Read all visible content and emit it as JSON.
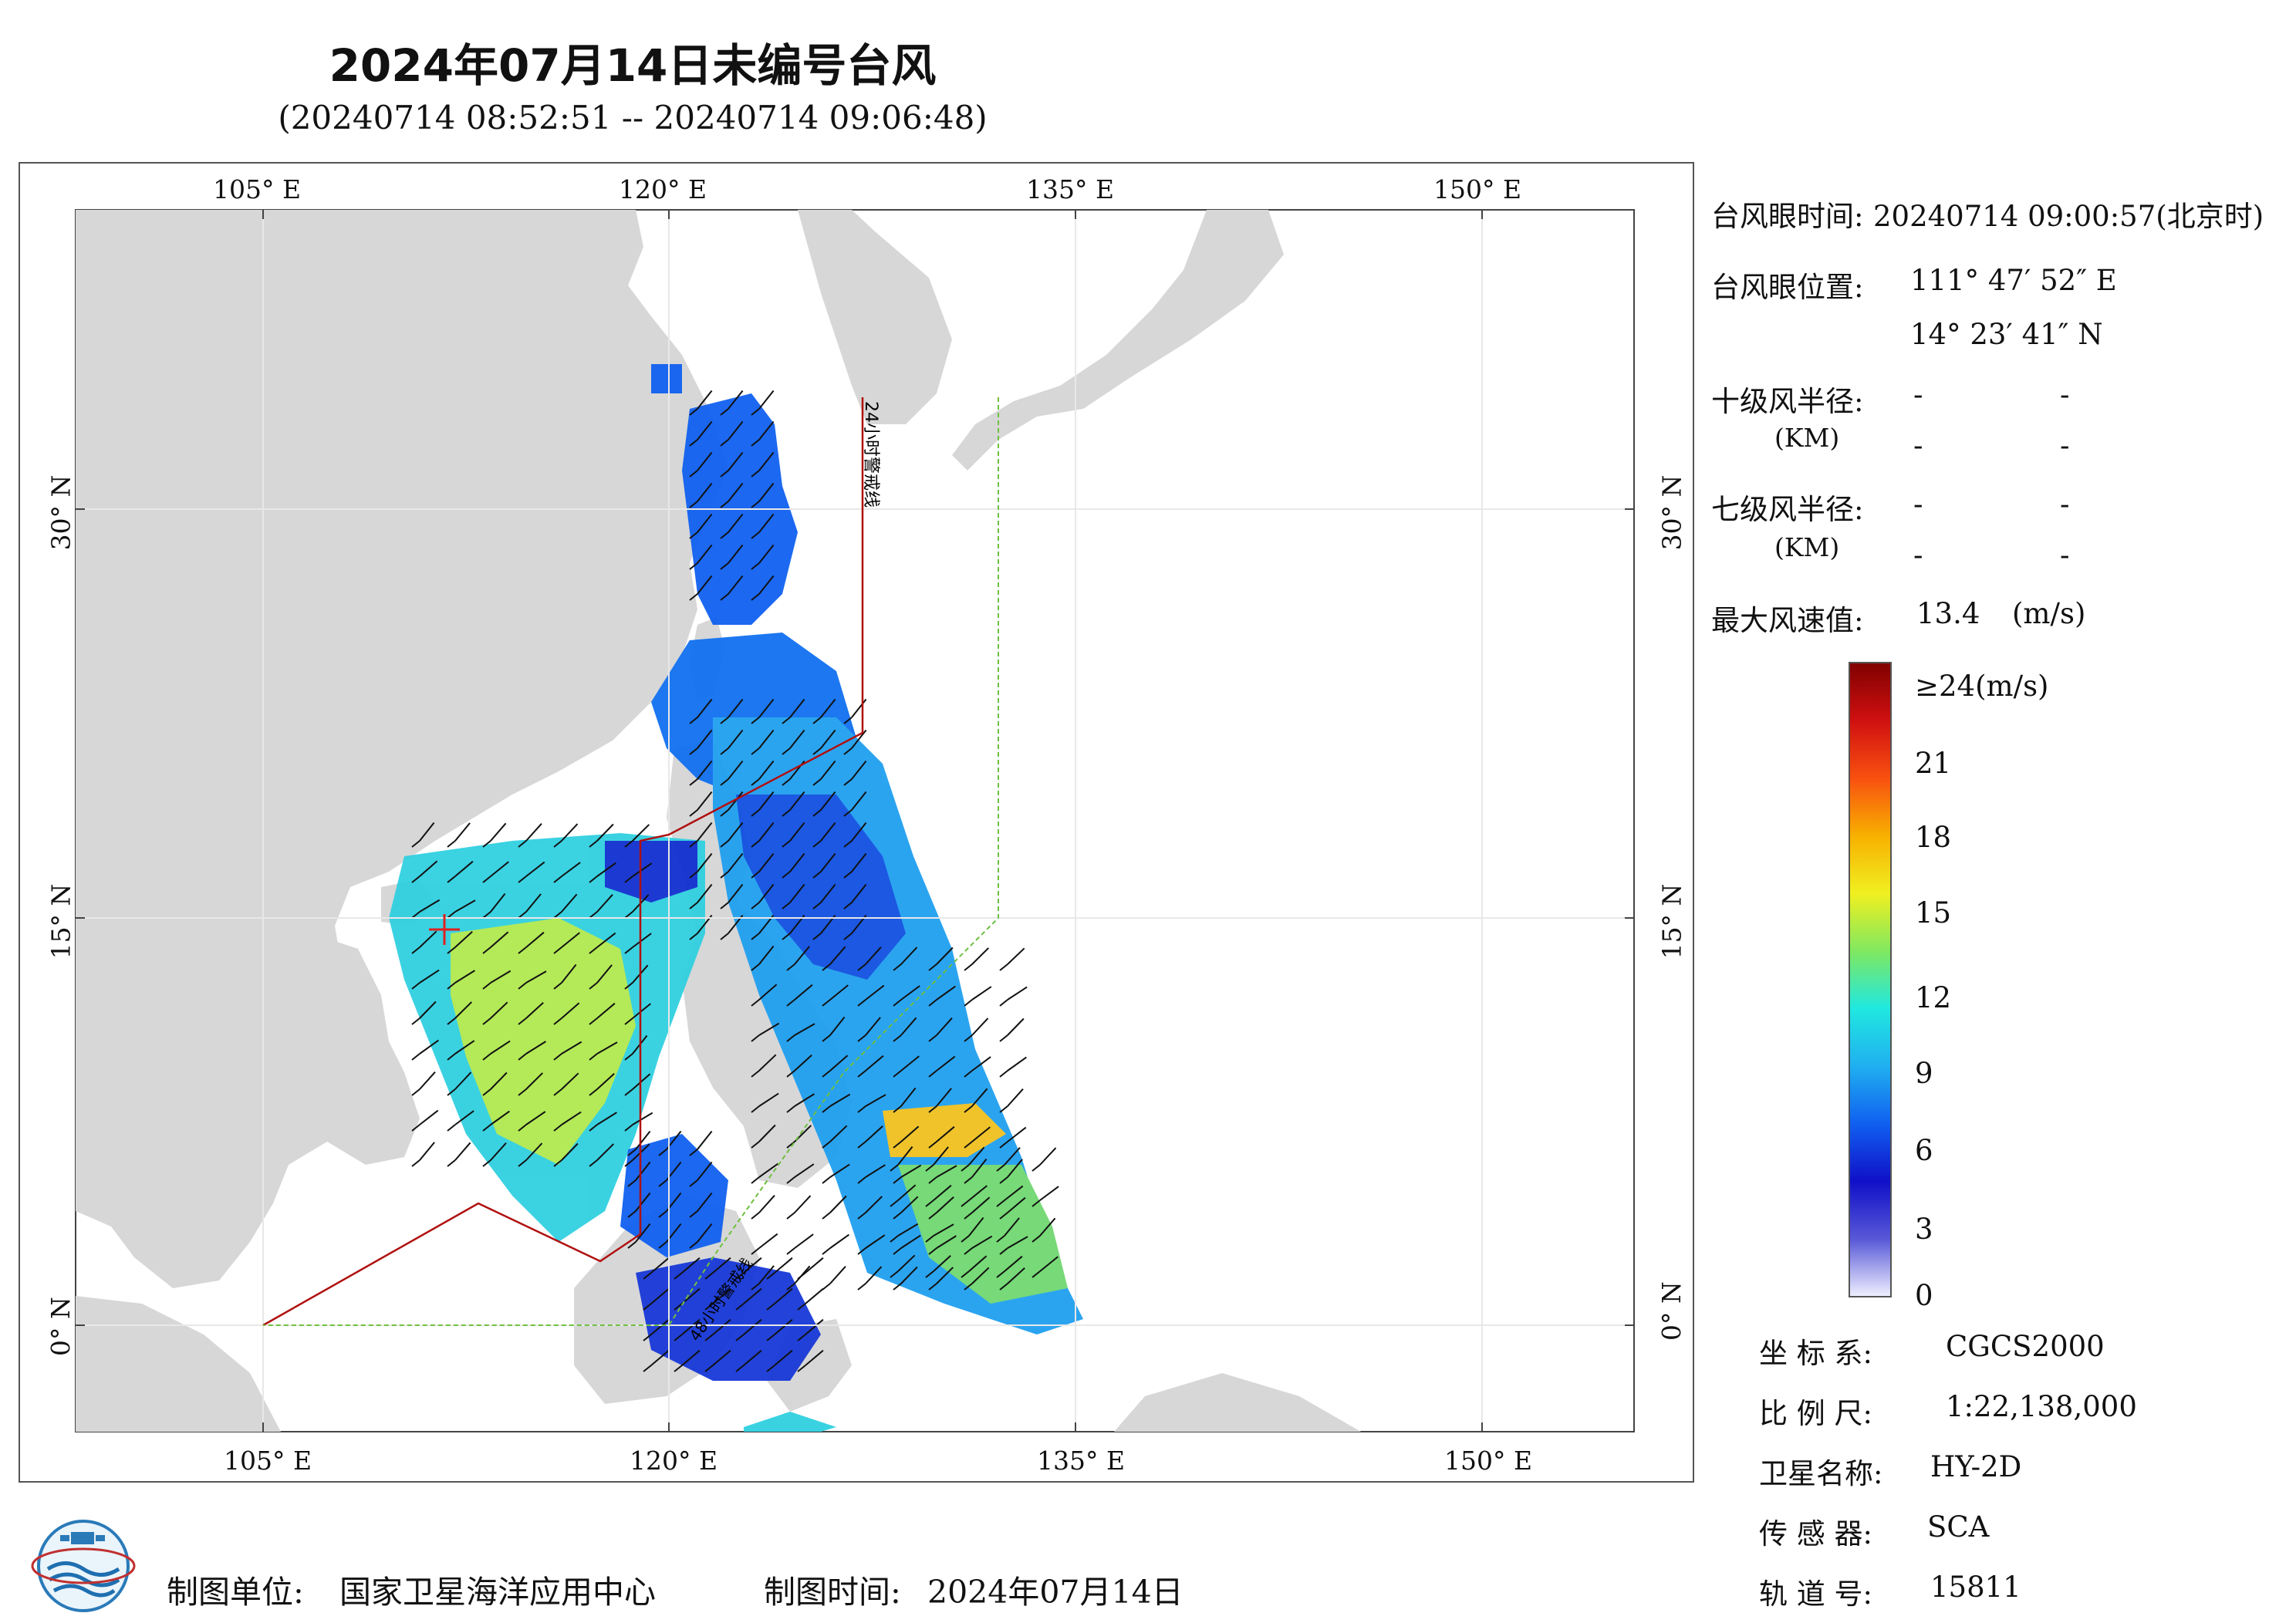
{
  "header": {
    "title": "2024年07月14日未编号台风",
    "subtitle": "(20240714 08:52:51 -- 20240714 09:06:48)"
  },
  "map": {
    "lon_labels": [
      "105° E",
      "120° E",
      "135° E",
      "150° E"
    ],
    "lat_labels": [
      "0° N",
      "15° N",
      "30° N"
    ],
    "line_label_north": "24小时警戒线",
    "line_label_south": "48小时警戒线",
    "colors": {
      "land": "#d7d7d7",
      "sea": "#ffffff",
      "warning_line": "#b01010",
      "dashed_line": "#6fbf40"
    }
  },
  "info": {
    "eye_time_label": "台风眼时间:",
    "eye_time_value": "20240714 09:00:57(北京时)",
    "eye_pos_label": "台风眼位置:",
    "eye_lon": "111° 47′ 52″ E",
    "eye_lat": "14° 23′ 41″ N",
    "r10_label": "十级风半径:",
    "r7_label": "七级风半径:",
    "km_label": "(KM)",
    "dash": "-",
    "max_wind_label": "最大风速值:",
    "max_wind_value": "13.4",
    "max_wind_unit": "(m/s)"
  },
  "colorbar": {
    "labels": [
      "≥24(m/s)",
      "21",
      "18",
      "15",
      "12",
      "9",
      "6",
      "3",
      "0"
    ],
    "stops": [
      "#f0f0ff",
      "#5858d8",
      "#1010c8",
      "#1060f0",
      "#20b0f0",
      "#20e8e0",
      "#80e860",
      "#f0f020",
      "#f8b000",
      "#f85010",
      "#d01010",
      "#800000"
    ]
  },
  "meta": {
    "crs_label": "坐 标 系:",
    "crs_value": "CGCS2000",
    "scale_label": "比 例 尺:",
    "scale_value": "1:22,138,000",
    "sat_label": "卫星名称:",
    "sat_value": "HY-2D",
    "sensor_label": "传 感 器:",
    "sensor_value": "SCA",
    "orbit_label": "轨 道 号:",
    "orbit_value": "15811"
  },
  "footer": {
    "unit_label": "制图单位:",
    "unit_value": "国家卫星海洋应用中心",
    "time_label": "制图时间:",
    "time_value": "2024年07月14日"
  }
}
